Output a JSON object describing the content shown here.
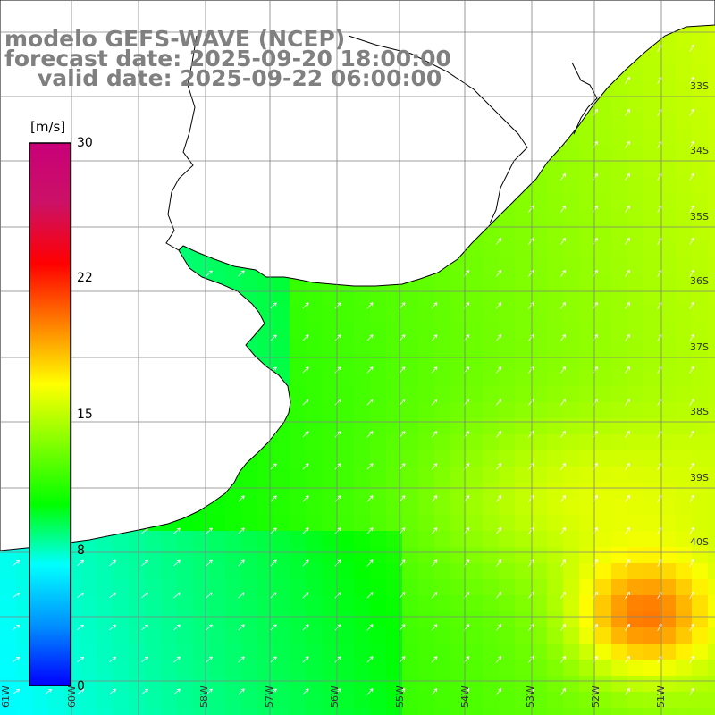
{
  "header": {
    "title": "modelo GEFS-WAVE (NCEP)",
    "forecast_date": "forecast date: 2025-09-20 18:00:00",
    "valid_date": "valid date: 2025-09-22 06:00:00"
  },
  "colorbar": {
    "unit": "[m/s]",
    "ticks": [
      "30",
      "22",
      "15",
      "8",
      "0"
    ],
    "tick_values": [
      30,
      22,
      15,
      8,
      0
    ],
    "min": 0,
    "max": 30,
    "colors": [
      "#0000ff",
      "#0090ff",
      "#00ffff",
      "#00ff00",
      "#80ff00",
      "#ffff00",
      "#ff8000",
      "#ff0000",
      "#cc1166",
      "#c80078"
    ]
  },
  "map": {
    "variable": "wind speed and direction",
    "grid_lines_color": "#808080",
    "land_color": "#ffffff",
    "coastline_color": "#000000",
    "lat_labels": [
      "33S",
      "34S",
      "35S",
      "36S",
      "37S",
      "38S",
      "39S",
      "40S"
    ],
    "lon_labels": [
      "61W",
      "60W",
      "58W",
      "57W",
      "56W",
      "55W",
      "54W",
      "53W",
      "52W",
      "51W"
    ]
  }
}
